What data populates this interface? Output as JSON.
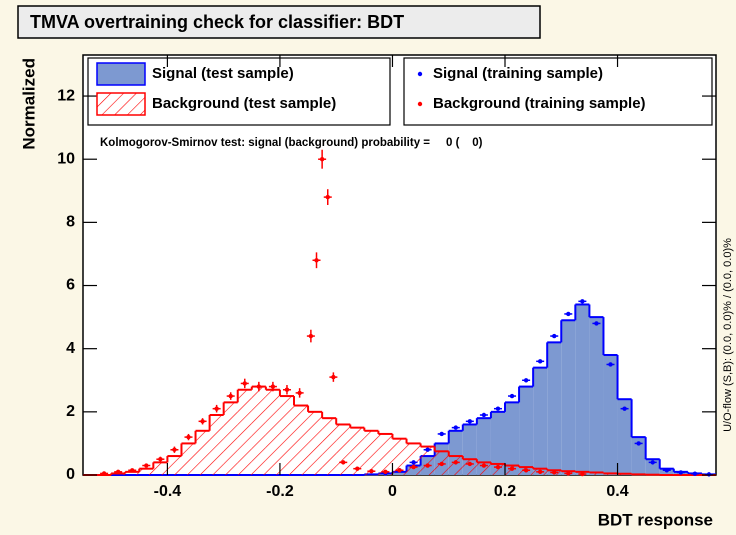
{
  "chart_data": {
    "type": "histogram",
    "title": "TMVA overtraining check for classifier: BDT",
    "xlabel": "BDT response",
    "ylabel": "Normalized",
    "bins": [
      -0.55,
      -0.525,
      -0.5,
      -0.475,
      -0.45,
      -0.425,
      -0.4,
      -0.375,
      -0.35,
      -0.325,
      -0.3,
      -0.275,
      -0.25,
      -0.225,
      -0.2,
      -0.175,
      -0.15,
      -0.125,
      -0.1,
      -0.075,
      -0.05,
      -0.025,
      0,
      0.025,
      0.05,
      0.075,
      0.1,
      0.125,
      0.15,
      0.175,
      0.2,
      0.225,
      0.25,
      0.275,
      0.3,
      0.325,
      0.35,
      0.375,
      0.4,
      0.425,
      0.45,
      0.475,
      0.5,
      0.525,
      0.55,
      0.575
    ],
    "xlim": [
      -0.55,
      0.575
    ],
    "ylim": [
      0,
      13.3
    ],
    "xticks": [
      -0.4,
      -0.2,
      0,
      0.2,
      0.4
    ],
    "yticks": [
      0,
      2,
      4,
      6,
      8,
      10,
      12
    ],
    "series": [
      {
        "name": "Signal (test sample)",
        "type": "histogram",
        "color": "#7d99d1",
        "edge_color": "#0000ff",
        "values": [
          0,
          0,
          0,
          0,
          0,
          0,
          0,
          0,
          0,
          0,
          0,
          0,
          0,
          0,
          0,
          0,
          0,
          0,
          0,
          0,
          0.02,
          0.05,
          0.1,
          0.3,
          0.6,
          1.0,
          1.4,
          1.6,
          1.8,
          2.0,
          2.3,
          2.8,
          3.4,
          4.2,
          4.9,
          5.4,
          5.0,
          3.8,
          2.4,
          1.2,
          0.5,
          0.2,
          0.1,
          0.05,
          0.02
        ]
      },
      {
        "name": "Background (test sample)",
        "type": "histogram",
        "color": "#ff0000",
        "hatch": true,
        "values": [
          0,
          0,
          0.05,
          0.1,
          0.2,
          0.4,
          0.6,
          1.0,
          1.4,
          1.9,
          2.3,
          2.7,
          2.8,
          2.7,
          2.5,
          2.2,
          2.0,
          1.8,
          1.6,
          1.5,
          1.4,
          1.3,
          1.15,
          1.0,
          0.9,
          0.75,
          0.6,
          0.5,
          0.4,
          0.35,
          0.3,
          0.25,
          0.2,
          0.15,
          0.12,
          0.1,
          0.08,
          0.05,
          0.04,
          0.02,
          0.01,
          0,
          0,
          0,
          0
        ]
      },
      {
        "name": "Signal (training sample)",
        "type": "errorbar",
        "color": "#0000ff",
        "x": [
          -0.0125,
          0.0125,
          0.0375,
          0.0625,
          0.0875,
          0.1125,
          0.1375,
          0.1625,
          0.1875,
          0.2125,
          0.2375,
          0.2625,
          0.2875,
          0.3125,
          0.3375,
          0.3625,
          0.3875,
          0.4125,
          0.4375,
          0.4625,
          0.4875,
          0.5125,
          0.5375,
          0.5625
        ],
        "values": [
          0.05,
          0.15,
          0.4,
          0.8,
          1.3,
          1.5,
          1.7,
          1.9,
          2.1,
          2.5,
          3.0,
          3.6,
          4.4,
          5.1,
          5.5,
          4.8,
          3.5,
          2.1,
          1.0,
          0.4,
          0.15,
          0.08,
          0.04,
          0.02
        ]
      },
      {
        "name": "Background (training sample)",
        "type": "errorbar",
        "color": "#ff0000",
        "x": [
          -0.5125,
          -0.4875,
          -0.4625,
          -0.4375,
          -0.4125,
          -0.3875,
          -0.3625,
          -0.3375,
          -0.3125,
          -0.2875,
          -0.2625,
          -0.2375,
          -0.2125,
          -0.1875,
          -0.165,
          -0.145,
          -0.135,
          -0.125,
          -0.115,
          -0.105,
          -0.0875,
          -0.0625,
          -0.0375,
          -0.0125,
          0.0125,
          0.0375,
          0.0625,
          0.0875,
          0.1125,
          0.1375,
          0.1625,
          0.1875,
          0.2125,
          0.2375,
          0.2625,
          0.2875,
          0.3125,
          0.3375
        ],
        "values": [
          0.05,
          0.1,
          0.15,
          0.3,
          0.5,
          0.8,
          1.2,
          1.7,
          2.1,
          2.5,
          2.9,
          2.8,
          2.8,
          2.7,
          2.6,
          4.4,
          6.8,
          10.0,
          8.8,
          3.1,
          0.4,
          0.2,
          0.12,
          0.1,
          0.15,
          0.25,
          0.3,
          0.35,
          0.4,
          0.35,
          0.3,
          0.25,
          0.2,
          0.15,
          0.1,
          0.08,
          0.05,
          0.03
        ],
        "errors": [
          0.03,
          0.04,
          0.05,
          0.06,
          0.08,
          0.1,
          0.1,
          0.1,
          0.12,
          0.12,
          0.15,
          0.15,
          0.15,
          0.15,
          0.15,
          0.2,
          0.25,
          0.3,
          0.25,
          0.15,
          0.05,
          0.04,
          0.04,
          0.03,
          0.04,
          0.05,
          0.05,
          0.05,
          0.06,
          0.05,
          0.05,
          0.05,
          0.04,
          0.04,
          0.03,
          0.03,
          0.02,
          0.02
        ]
      }
    ],
    "annotations": [
      "Kolmogorov-Smirnov test: signal (background) probability =     0 (    0)",
      "U/O-flow (S,B): (0.0, 0.0)% / (0.0, 0.0)%"
    ]
  }
}
